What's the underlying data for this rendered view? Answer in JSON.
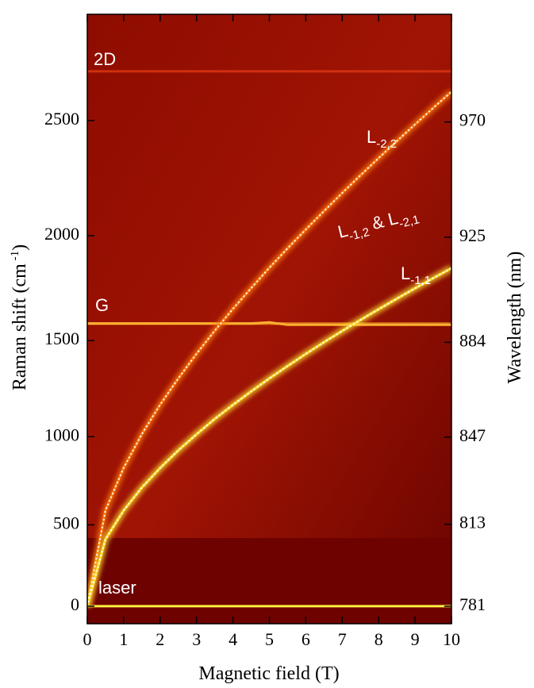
{
  "chart_data": {
    "type": "heatmap",
    "xlabel": "Magnetic field (T)",
    "ylabel": {
      "text": "Raman shift (cm",
      "sup": " -1",
      "end": ")"
    },
    "y2label": "Wavelength (nm)",
    "x": [
      0,
      0.5,
      1,
      1.5,
      2,
      2.5,
      3,
      3.5,
      4,
      4.5,
      5,
      5.5,
      6,
      6.5,
      7,
      7.5,
      8,
      8.5,
      9,
      9.5,
      10
    ],
    "xlim": [
      0,
      10
    ],
    "xticks": [
      0,
      1,
      2,
      3,
      4,
      5,
      6,
      7,
      8,
      9,
      10
    ],
    "ylim": [
      -113,
      2923
    ],
    "yticks": [
      0,
      500,
      1000,
      1500,
      2000,
      2500
    ],
    "y2lim": [
      774.2,
      1012
    ],
    "y2ticks": [
      781,
      813,
      847,
      884,
      925,
      970
    ],
    "series": [
      {
        "color": "#ffee40",
        "style": "solid",
        "values": [
          0,
          0,
          0,
          0,
          0,
          0,
          0,
          0,
          0,
          0,
          0,
          0,
          0,
          0,
          0,
          0,
          0,
          0,
          0,
          0,
          0
        ]
      },
      {
        "color": "#ffb030",
        "style": "solid",
        "values": [
          1585,
          1585,
          1585,
          1585,
          1585,
          1585,
          1585,
          1585,
          1585,
          1585,
          1590,
          1578,
          1578,
          1578,
          1578,
          1578,
          1578,
          1578,
          1578,
          1578,
          1578
        ]
      },
      {
        "color": "#d03010",
        "style": "solid",
        "values": [
          2700,
          2700,
          2700,
          2700,
          2700,
          2700,
          2700,
          2700,
          2700,
          2700,
          2700,
          2700,
          2700,
          2700,
          2700,
          2700,
          2700,
          2700,
          2700,
          2700,
          2700
        ]
      },
      {
        "color": "#ff7a10",
        "style": "solid",
        "values": [
          0,
          585,
          828,
          1014,
          1171,
          1309,
          1434,
          1549,
          1656,
          1756,
          1852,
          1942,
          2028,
          2111,
          2191,
          2268,
          2342,
          2414,
          2484,
          2552,
          2618
        ]
      },
      {
        "color": "#ffe030",
        "style": "solid",
        "values": [
          0,
          414,
          585,
          717,
          827,
          925,
          1013,
          1095,
          1170,
          1241,
          1308,
          1372,
          1433,
          1492,
          1548,
          1602,
          1654,
          1705,
          1755,
          1803,
          1850
        ]
      },
      {
        "color": "#ffffff",
        "style": "dotted",
        "values": [
          0,
          585,
          828,
          1014,
          1171,
          1309,
          1434,
          1549,
          1656,
          1756,
          1852,
          1942,
          2028,
          2111,
          2191,
          2268,
          2342,
          2414,
          2484,
          2552,
          2618
        ]
      },
      {
        "color": "#ffffff",
        "style": "dotted",
        "values": [
          0,
          414,
          585,
          717,
          827,
          925,
          1013,
          1095,
          1170,
          1241,
          1308,
          1372,
          1433,
          1492,
          1548,
          1602,
          1654,
          1705,
          1755,
          1803,
          1850
        ]
      }
    ],
    "annotations": [
      {
        "parts": [
          {
            "text": "2D"
          }
        ]
      },
      {
        "parts": [
          {
            "text": "G"
          }
        ]
      },
      {
        "parts": [
          {
            "text": "laser"
          }
        ]
      },
      {
        "parts": [
          {
            "text": "L",
            "sub": "-2,2"
          }
        ]
      },
      {
        "parts": [
          {
            "text": "L",
            "sub": "-1,2"
          },
          {
            "text": " & L",
            "sub": "-2,1"
          }
        ]
      },
      {
        "parts": [
          {
            "text": "L",
            "sub": "-1,1"
          }
        ]
      }
    ]
  }
}
